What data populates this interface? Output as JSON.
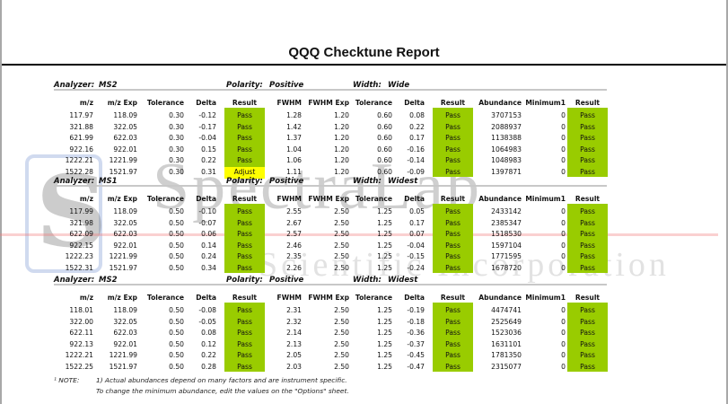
{
  "title": "QQQ Checktune Report",
  "watermark": {
    "brand": "SpectraLab",
    "sub": "Scientific Incorporation",
    "logo_letter": "S"
  },
  "colors": {
    "pass": "#99cc00",
    "adjust": "#ffff00"
  },
  "columns": [
    "m/z",
    "m/z Exp",
    "Tolerance",
    "Delta",
    "Result",
    "FWHM",
    "FWHM Exp",
    "Tolerance",
    "Delta",
    "Result",
    "Abundance",
    "Minimum1",
    "Result"
  ],
  "labels": {
    "analyzer": "Analyzer:",
    "polarity": "Polarity:",
    "width": "Width:"
  },
  "sections": [
    {
      "analyzer": "MS2",
      "polarity": "Positive",
      "width": "Wide",
      "rows": [
        [
          "117.97",
          "118.09",
          "0.30",
          "-0.12",
          "Pass",
          "1.28",
          "1.20",
          "0.60",
          "0.08",
          "Pass",
          "3707153",
          "0",
          "Pass"
        ],
        [
          "321.88",
          "322.05",
          "0.30",
          "-0.17",
          "Pass",
          "1.42",
          "1.20",
          "0.60",
          "0.22",
          "Pass",
          "2088937",
          "0",
          "Pass"
        ],
        [
          "621.99",
          "622.03",
          "0.30",
          "-0.04",
          "Pass",
          "1.37",
          "1.20",
          "0.60",
          "0.17",
          "Pass",
          "1138388",
          "0",
          "Pass"
        ],
        [
          "922.16",
          "922.01",
          "0.30",
          "0.15",
          "Pass",
          "1.04",
          "1.20",
          "0.60",
          "-0.16",
          "Pass",
          "1064983",
          "0",
          "Pass"
        ],
        [
          "1222.21",
          "1221.99",
          "0.30",
          "0.22",
          "Pass",
          "1.06",
          "1.20",
          "0.60",
          "-0.14",
          "Pass",
          "1048983",
          "0",
          "Pass"
        ],
        [
          "1522.28",
          "1521.97",
          "0.30",
          "0.31",
          "Adjust",
          "1.11",
          "1.20",
          "0.60",
          "-0.09",
          "Pass",
          "1397871",
          "0",
          "Pass"
        ]
      ]
    },
    {
      "analyzer": "MS1",
      "polarity": "Positive",
      "width": "Widest",
      "rows": [
        [
          "117.99",
          "118.09",
          "0.50",
          "-0.10",
          "Pass",
          "2.55",
          "2.50",
          "1.25",
          "0.05",
          "Pass",
          "2433142",
          "0",
          "Pass"
        ],
        [
          "321.98",
          "322.05",
          "0.50",
          "-0.07",
          "Pass",
          "2.67",
          "2.50",
          "1.25",
          "0.17",
          "Pass",
          "2385347",
          "0",
          "Pass"
        ],
        [
          "622.09",
          "622.03",
          "0.50",
          "0.06",
          "Pass",
          "2.57",
          "2.50",
          "1.25",
          "0.07",
          "Pass",
          "1518530",
          "0",
          "Pass"
        ],
        [
          "922.15",
          "922.01",
          "0.50",
          "0.14",
          "Pass",
          "2.46",
          "2.50",
          "1.25",
          "-0.04",
          "Pass",
          "1597104",
          "0",
          "Pass"
        ],
        [
          "1222.23",
          "1221.99",
          "0.50",
          "0.24",
          "Pass",
          "2.35",
          "2.50",
          "1.25",
          "-0.15",
          "Pass",
          "1771595",
          "0",
          "Pass"
        ],
        [
          "1522.31",
          "1521.97",
          "0.50",
          "0.34",
          "Pass",
          "2.26",
          "2.50",
          "1.25",
          "-0.24",
          "Pass",
          "1678720",
          "0",
          "Pass"
        ]
      ]
    },
    {
      "analyzer": "MS2",
      "polarity": "Positive",
      "width": "Widest",
      "rows": [
        [
          "118.01",
          "118.09",
          "0.50",
          "-0.08",
          "Pass",
          "2.31",
          "2.50",
          "1.25",
          "-0.19",
          "Pass",
          "4474741",
          "0",
          "Pass"
        ],
        [
          "322.00",
          "322.05",
          "0.50",
          "-0.05",
          "Pass",
          "2.32",
          "2.50",
          "1.25",
          "-0.18",
          "Pass",
          "2525649",
          "0",
          "Pass"
        ],
        [
          "622.11",
          "622.03",
          "0.50",
          "0.08",
          "Pass",
          "2.14",
          "2.50",
          "1.25",
          "-0.36",
          "Pass",
          "1523036",
          "0",
          "Pass"
        ],
        [
          "922.13",
          "922.01",
          "0.50",
          "0.12",
          "Pass",
          "2.13",
          "2.50",
          "1.25",
          "-0.37",
          "Pass",
          "1631101",
          "0",
          "Pass"
        ],
        [
          "1222.21",
          "1221.99",
          "0.50",
          "0.22",
          "Pass",
          "2.05",
          "2.50",
          "1.25",
          "-0.45",
          "Pass",
          "1781350",
          "0",
          "Pass"
        ],
        [
          "1522.25",
          "1521.97",
          "0.50",
          "0.28",
          "Pass",
          "2.03",
          "2.50",
          "1.25",
          "-0.47",
          "Pass",
          "2315077",
          "0",
          "Pass"
        ]
      ]
    }
  ],
  "notes": {
    "label": "¹ NOTE:",
    "line1": "1) Actual abundances depend on many factors and are instrument specific.",
    "line2": "To change the minimum abundance, edit the values on the \"Options\" sheet."
  }
}
